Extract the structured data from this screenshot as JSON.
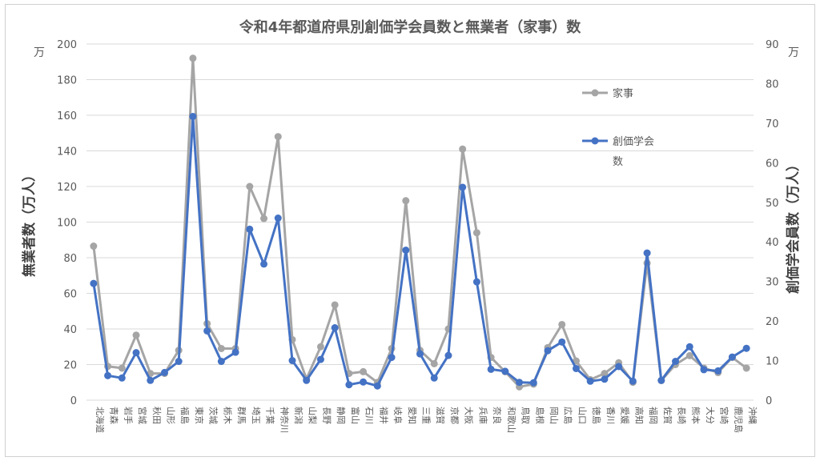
{
  "chart_data": {
    "type": "line",
    "title": "令和4年都道府県別創価学会員数と無業者（家事）数",
    "ylabel_left": "無業者数（万人）",
    "ylabel_right": "創価学会員数（万人）",
    "unit_left": "万",
    "unit_right": "万",
    "ylim_left": [
      0,
      200
    ],
    "ylim_right": [
      0,
      90
    ],
    "yticks_left": [
      "0",
      "20",
      "40",
      "60",
      "80",
      "100",
      "120",
      "140",
      "160",
      "180",
      "200"
    ],
    "yticks_right": [
      "0",
      "10",
      "20",
      "30",
      "40",
      "50",
      "60",
      "70",
      "80",
      "90"
    ],
    "legend_position": "top-right",
    "categories": [
      "北海道",
      "青森",
      "岩手",
      "宮城",
      "秋田",
      "山形",
      "福島",
      "東京",
      "茨城",
      "栃木",
      "群馬",
      "埼玉",
      "千葉",
      "神奈川",
      "新潟",
      "山梨",
      "長野",
      "静岡",
      "富山",
      "石川",
      "福井",
      "岐阜",
      "愛知",
      "三重",
      "滋賀",
      "京都",
      "大阪",
      "兵庫",
      "奈良",
      "和歌山",
      "鳥取",
      "島根",
      "岡山",
      "広島",
      "山口",
      "徳島",
      "香川",
      "愛媛",
      "高知",
      "福岡",
      "佐賀",
      "長崎",
      "熊本",
      "大分",
      "宮崎",
      "鹿児島",
      "沖縄"
    ],
    "series": [
      {
        "name": "家事",
        "axis": "left",
        "color": "#a5a5a5",
        "values": [
          86.5,
          19,
          18,
          36.5,
          15,
          15,
          28,
          192,
          43,
          29,
          29,
          120,
          102,
          148,
          34,
          12,
          30,
          53.5,
          15,
          16,
          10,
          29,
          112,
          28,
          20.5,
          40,
          141,
          94,
          24,
          16,
          7.5,
          9,
          29.5,
          42.5,
          22,
          11.5,
          15,
          21,
          10,
          77,
          11,
          20,
          25,
          18,
          15.5,
          24,
          18
        ]
      },
      {
        "name": "創価学会数",
        "axis": "right",
        "color": "#4472c4",
        "values": [
          29.5,
          6.2,
          5.6,
          12,
          5,
          7,
          9.8,
          71.7,
          17.5,
          9.8,
          12.1,
          43.2,
          34.4,
          46,
          10,
          5,
          10.3,
          18.3,
          3.9,
          4.6,
          3.6,
          10.8,
          37.9,
          11.7,
          5.6,
          11.3,
          53.8,
          29.9,
          7.8,
          7.3,
          4.5,
          4.4,
          12.5,
          14.7,
          8,
          4.8,
          5.3,
          8.5,
          4.8,
          37.2,
          5,
          9.8,
          13.5,
          7.7,
          7.4,
          10.9,
          13.1
        ]
      }
    ]
  }
}
